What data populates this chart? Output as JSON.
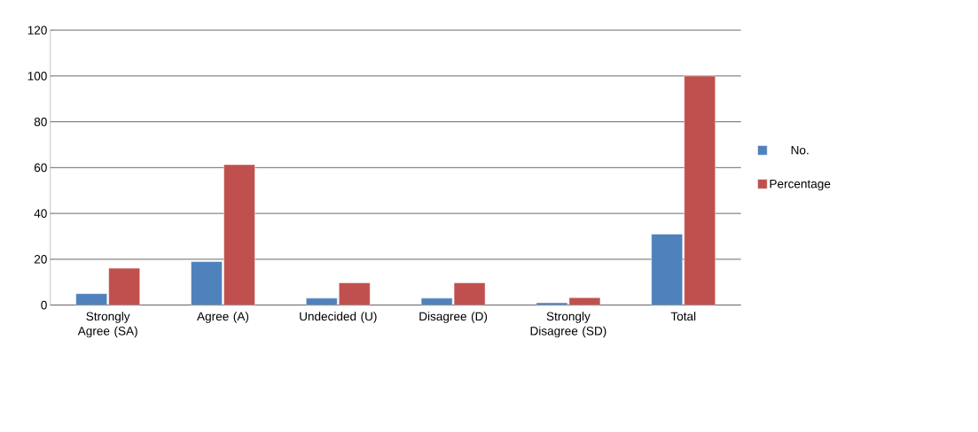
{
  "chart_data": {
    "type": "bar",
    "categories": [
      "Strongly Agree (SA)",
      "Agree (A)",
      "Undecided (U)",
      "Disagree (D)",
      "Strongly Disagree (SD)",
      "Total"
    ],
    "series": [
      {
        "name": "No.",
        "color": "#4f81bd",
        "values": [
          5,
          19,
          3,
          3,
          1,
          31
        ]
      },
      {
        "name": "Percentage",
        "color": "#c0504d",
        "values": [
          16.1,
          61.3,
          9.7,
          9.7,
          3.2,
          100
        ]
      }
    ],
    "ylim": [
      0,
      120
    ],
    "yticks": [
      0,
      20,
      40,
      60,
      80,
      100,
      120
    ],
    "grid": "y",
    "legend": "right"
  }
}
